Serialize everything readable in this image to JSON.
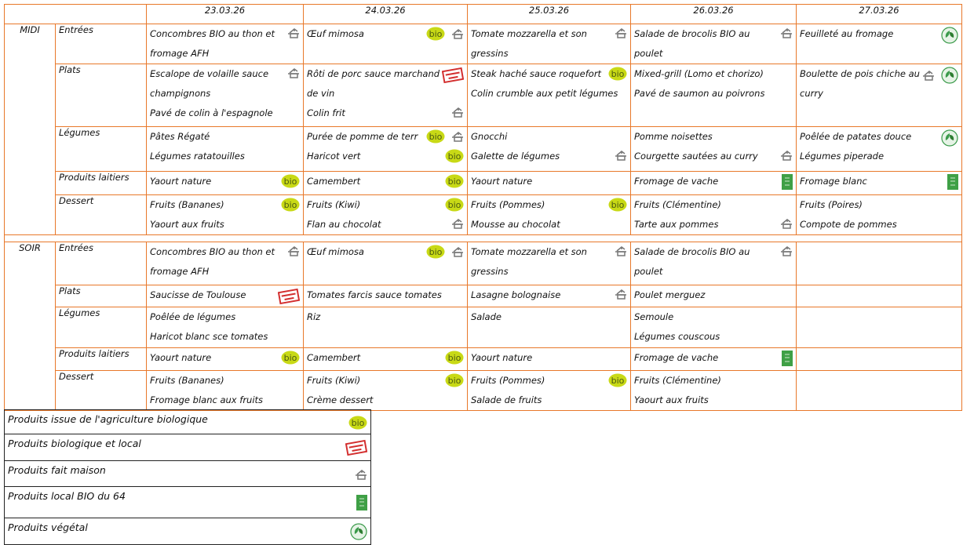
{
  "colors": {
    "grid": "#e8782a",
    "bio": "#c8d916",
    "local_stamp": "#d32f2f",
    "local64": "#3fa046",
    "vegetal": "#3a9a4a",
    "house": "#777777"
  },
  "dates": [
    "23.03.26",
    "24.03.26",
    "25.03.26",
    "26.03.26",
    "27.03.26"
  ],
  "meals": [
    {
      "name": "MIDI",
      "rows": [
        {
          "category": "Entrées",
          "cells": [
            {
              "items": [
                {
                  "text": "Concombres BIO au thon et fromage AFH",
                  "icons": [
                    "house-icon"
                  ]
                }
              ]
            },
            {
              "items": [
                {
                  "text": "Œuf mimosa",
                  "icons": [
                    "bio-icon",
                    "house-icon"
                  ]
                }
              ]
            },
            {
              "items": [
                {
                  "text": "Tomate mozzarella et son gressins",
                  "icons": [
                    "house-icon"
                  ]
                }
              ]
            },
            {
              "items": [
                {
                  "text": "Salade de brocolis BIO au poulet",
                  "icons": [
                    "house-icon"
                  ]
                }
              ]
            },
            {
              "items": [
                {
                  "text": "Feuilleté au fromage",
                  "icons": [
                    "vegetal-icon"
                  ]
                }
              ]
            }
          ]
        },
        {
          "category": "Plats",
          "cells": [
            {
              "items": [
                {
                  "text": "Escalope de volaille sauce champignons",
                  "icons": [
                    "house-icon"
                  ]
                },
                {
                  "text": "Pavé de colin à l'espagnole",
                  "icons": []
                }
              ]
            },
            {
              "items": [
                {
                  "text": "Rôti de porc sauce marchand de vin",
                  "icons": [
                    "local-stamp-icon"
                  ]
                },
                {
                  "text": "Colin frit",
                  "icons": [
                    "house-icon"
                  ]
                }
              ]
            },
            {
              "items": [
                {
                  "text": "Steak haché sauce roquefort",
                  "icons": [
                    "bio-icon"
                  ]
                },
                {
                  "text": "Colin crumble aux petit légumes",
                  "icons": []
                }
              ]
            },
            {
              "items": [
                {
                  "text": "Mixed-grill (Lomo et chorizo)",
                  "icons": []
                },
                {
                  "text": "Pavé de saumon au poivrons",
                  "icons": []
                }
              ]
            },
            {
              "items": [
                {
                  "text": "Boulette de pois chiche au curry",
                  "icons": [
                    "house-icon",
                    "vegetal-icon"
                  ]
                }
              ]
            }
          ]
        },
        {
          "category": "Légumes",
          "cells": [
            {
              "items": [
                {
                  "text": "Pâtes Régaté",
                  "icons": []
                },
                {
                  "text": "Légumes ratatouilles",
                  "icons": []
                }
              ]
            },
            {
              "items": [
                {
                  "text": "Purée de pomme de terr",
                  "icons": [
                    "bio-icon",
                    "house-icon"
                  ]
                },
                {
                  "text": "Haricot vert",
                  "icons": [
                    "bio-icon"
                  ]
                }
              ]
            },
            {
              "items": [
                {
                  "text": "Gnocchi",
                  "icons": []
                },
                {
                  "text": "Galette de légumes",
                  "icons": [
                    "house-icon"
                  ]
                }
              ]
            },
            {
              "items": [
                {
                  "text": "Pomme noisettes",
                  "icons": []
                },
                {
                  "text": "Courgette sautées au curry",
                  "icons": [
                    "house-icon"
                  ]
                }
              ]
            },
            {
              "items": [
                {
                  "text": "Poêlée de patates douce",
                  "icons": [
                    "vegetal-icon"
                  ]
                },
                {
                  "text": "Légumes piperade",
                  "icons": []
                }
              ]
            }
          ]
        },
        {
          "category": "Produits laitiers",
          "cells": [
            {
              "items": [
                {
                  "text": "Yaourt nature",
                  "icons": [
                    "bio-icon"
                  ]
                }
              ]
            },
            {
              "items": [
                {
                  "text": "Camembert",
                  "icons": [
                    "bio-icon"
                  ]
                }
              ]
            },
            {
              "items": [
                {
                  "text": "Yaourt nature",
                  "icons": []
                }
              ]
            },
            {
              "items": [
                {
                  "text": "Fromage de vache",
                  "icons": [
                    "local-bio-64-icon"
                  ]
                }
              ]
            },
            {
              "items": [
                {
                  "text": "Fromage blanc",
                  "icons": [
                    "local-bio-64-icon"
                  ]
                }
              ]
            }
          ]
        },
        {
          "category": "Dessert",
          "cells": [
            {
              "items": [
                {
                  "text": "Fruits (Bananes)",
                  "icons": [
                    "bio-icon"
                  ]
                },
                {
                  "text": "Yaourt aux fruits",
                  "icons": []
                }
              ]
            },
            {
              "items": [
                {
                  "text": "Fruits (Kiwi)",
                  "icons": [
                    "bio-icon"
                  ]
                },
                {
                  "text": "Flan au chocolat",
                  "icons": [
                    "house-icon"
                  ]
                }
              ]
            },
            {
              "items": [
                {
                  "text": "Fruits (Pommes)",
                  "icons": [
                    "bio-icon"
                  ]
                },
                {
                  "text": "Mousse au chocolat",
                  "icons": []
                }
              ]
            },
            {
              "items": [
                {
                  "text": "Fruits (Clémentine)",
                  "icons": []
                },
                {
                  "text": "Tarte aux pommes",
                  "icons": [
                    "house-icon"
                  ]
                }
              ]
            },
            {
              "items": [
                {
                  "text": "Fruits (Poires)",
                  "icons": []
                },
                {
                  "text": "Compote de pommes",
                  "icons": []
                }
              ]
            }
          ]
        }
      ]
    },
    {
      "name": "SOIR",
      "rows": [
        {
          "category": "Entrées",
          "cells": [
            {
              "items": [
                {
                  "text": "Concombres BIO au thon et fromage AFH",
                  "icons": [
                    "house-icon"
                  ]
                }
              ]
            },
            {
              "items": [
                {
                  "text": "Œuf mimosa",
                  "icons": [
                    "bio-icon",
                    "house-icon"
                  ]
                }
              ]
            },
            {
              "items": [
                {
                  "text": "Tomate mozzarella et son gressins",
                  "icons": [
                    "house-icon"
                  ]
                }
              ]
            },
            {
              "items": [
                {
                  "text": "Salade de brocolis BIO au poulet",
                  "icons": [
                    "house-icon"
                  ]
                }
              ]
            },
            {
              "items": []
            }
          ]
        },
        {
          "category": "Plats",
          "cells": [
            {
              "items": [
                {
                  "text": "Saucisse de Toulouse",
                  "icons": [
                    "local-stamp-icon"
                  ]
                }
              ]
            },
            {
              "items": [
                {
                  "text": "Tomates farcis sauce tomates",
                  "icons": []
                }
              ]
            },
            {
              "items": [
                {
                  "text": "Lasagne bolognaise",
                  "icons": [
                    "house-icon"
                  ]
                }
              ]
            },
            {
              "items": [
                {
                  "text": "Poulet merguez",
                  "icons": []
                }
              ]
            },
            {
              "items": []
            }
          ]
        },
        {
          "category": "Légumes",
          "cells": [
            {
              "items": [
                {
                  "text": "Poêlée de légumes",
                  "icons": []
                },
                {
                  "text": "Haricot blanc sce tomates",
                  "icons": []
                }
              ]
            },
            {
              "items": [
                {
                  "text": "Riz",
                  "icons": []
                }
              ]
            },
            {
              "items": [
                {
                  "text": "Salade",
                  "icons": []
                }
              ]
            },
            {
              "items": [
                {
                  "text": "Semoule",
                  "icons": []
                },
                {
                  "text": "Légumes couscous",
                  "icons": []
                }
              ]
            },
            {
              "items": []
            }
          ]
        },
        {
          "category": "Produits laitiers",
          "cells": [
            {
              "items": [
                {
                  "text": "Yaourt nature",
                  "icons": [
                    "bio-icon"
                  ]
                }
              ]
            },
            {
              "items": [
                {
                  "text": "Camembert",
                  "icons": [
                    "bio-icon"
                  ]
                }
              ]
            },
            {
              "items": [
                {
                  "text": "Yaourt nature",
                  "icons": []
                }
              ]
            },
            {
              "items": [
                {
                  "text": "Fromage de vache",
                  "icons": [
                    "local-bio-64-icon"
                  ]
                }
              ]
            },
            {
              "items": []
            }
          ]
        },
        {
          "category": "Dessert",
          "cells": [
            {
              "items": [
                {
                  "text": "Fruits (Bananes)",
                  "icons": []
                },
                {
                  "text": "Fromage blanc aux fruits",
                  "icons": []
                }
              ]
            },
            {
              "items": [
                {
                  "text": "Fruits (Kiwi)",
                  "icons": [
                    "bio-icon"
                  ]
                },
                {
                  "text": "Crème dessert",
                  "icons": []
                }
              ]
            },
            {
              "items": [
                {
                  "text": "Fruits (Pommes)",
                  "icons": [
                    "bio-icon"
                  ]
                },
                {
                  "text": "Salade de fruits",
                  "icons": []
                }
              ]
            },
            {
              "items": [
                {
                  "text": "Fruits (Clémentine)",
                  "icons": []
                },
                {
                  "text": "Yaourt aux fruits",
                  "icons": []
                }
              ]
            },
            {
              "items": []
            }
          ]
        }
      ]
    }
  ],
  "legend": [
    {
      "label": "Produits issue de l'agriculture biologique",
      "icon": "bio-icon"
    },
    {
      "label": "Produits biologique et local",
      "icon": "local-stamp-icon"
    },
    {
      "label": "Produits fait maison",
      "icon": "house-icon"
    },
    {
      "label": "Produits local BIO du 64",
      "icon": "local-bio-64-icon"
    },
    {
      "label": "Produits végétal",
      "icon": "vegetal-icon"
    }
  ]
}
